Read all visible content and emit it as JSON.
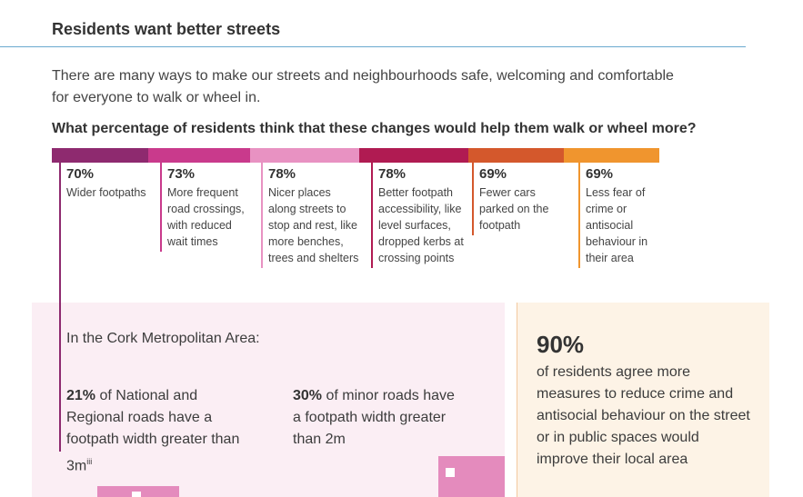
{
  "header": {
    "title": "Residents want better streets"
  },
  "intro": "There are many ways to make our streets and neighbourhoods safe, welcoming and comfortable for everyone to walk or wheel in.",
  "question": "What percentage of residents think that these changes would help them walk or wheel more?",
  "items": [
    {
      "percent": "70%",
      "label": "Wider footpaths",
      "color": "#8e2a6f"
    },
    {
      "percent": "73%",
      "label": "More frequent road crossings, with reduced wait times",
      "color": "#c93a8c"
    },
    {
      "percent": "78%",
      "label": "Nicer places along streets to stop and rest, like more benches, trees and shelters",
      "color": "#e892c2"
    },
    {
      "percent": "78%",
      "label": "Better footpath accessibility, like level surfaces, dropped kerbs at crossing points",
      "color": "#b01b52"
    },
    {
      "percent": "69%",
      "label": "Fewer cars parked on the footpath",
      "color": "#d4582c"
    },
    {
      "percent": "69%",
      "label": "Less fear of crime or antisocial behaviour in their area",
      "color": "#f0952e"
    }
  ],
  "cork": {
    "heading": "In the Cork Metropolitan Area:",
    "stats": [
      {
        "value": "21%",
        "text": "of National and Regional roads have a footpath width greater than 3m",
        "note": "iii"
      },
      {
        "value": "30%",
        "text": "of minor roads have a footpath width greater than 2m"
      }
    ]
  },
  "side": {
    "value": "90%",
    "text": "of residents agree more measures to reduce crime and antisocial behaviour on the street or in public spaces would improve their local area"
  }
}
